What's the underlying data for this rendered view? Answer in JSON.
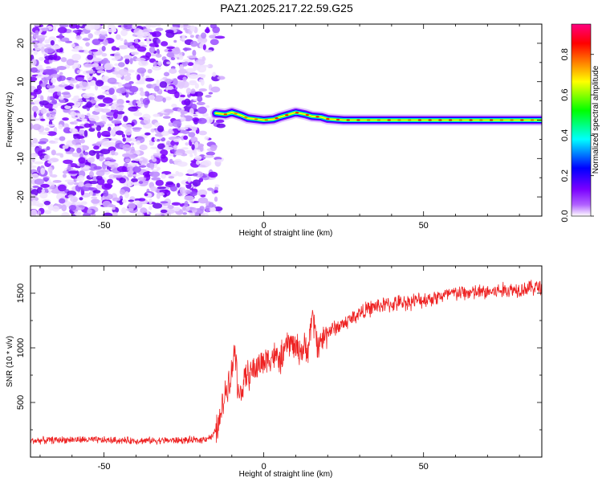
{
  "title": "PAZ1.2025.217.22.59.G25",
  "chart_data": [
    {
      "type": "heatmap",
      "xlabel": "Height of straight line (km)",
      "ylabel": "Frequency (Hz)",
      "xlim": [
        -73,
        87
      ],
      "ylim": [
        -25,
        25
      ],
      "x_ticks": [
        -50,
        0,
        50
      ],
      "y_ticks": [
        -20,
        -10,
        0,
        10,
        20
      ],
      "colorbar": {
        "label": "Normalized spectral amplitude",
        "ticks": [
          "0.0",
          "0.2",
          "0.4",
          "0.6",
          "0.8"
        ],
        "range": [
          0,
          0.95
        ],
        "colors": [
          "#ffffff",
          "#8b00ff",
          "#0000ff",
          "#00ffff",
          "#00ff00",
          "#ffff00",
          "#ff8000",
          "#ff0000",
          "#ff0080"
        ]
      },
      "signal_track": {
        "x": [
          -15,
          -12,
          -10,
          -7,
          -5,
          -2,
          0,
          3,
          5,
          8,
          10,
          13,
          15,
          18,
          20,
          25,
          30,
          40,
          50,
          60,
          70,
          80,
          87
        ],
        "frequency": [
          1.8,
          1.5,
          2.0,
          1.2,
          0.5,
          0.2,
          0.0,
          0.2,
          0.8,
          1.5,
          2.0,
          1.5,
          1.0,
          0.8,
          0.3,
          0.0,
          0.0,
          0.0,
          0.0,
          0.0,
          0.0,
          0.0,
          0.0
        ]
      },
      "noise_region": {
        "x_range": [
          -73,
          -15
        ],
        "freq_range": [
          -25,
          25
        ]
      }
    },
    {
      "type": "line",
      "xlabel": "Height of straight line (km)",
      "ylabel": "SNR (10 * v/v)",
      "xlim": [
        -73,
        87
      ],
      "ylim": [
        0,
        1750
      ],
      "x_ticks": [
        -50,
        0,
        50
      ],
      "y_ticks": [
        500,
        1000,
        1500
      ],
      "color": "#ee2222",
      "series": [
        {
          "x": [
            -73,
            -60,
            -40,
            -20,
            -16,
            -14,
            -12,
            -11,
            -10,
            -9,
            -8,
            -7,
            -5,
            -2,
            0,
            3,
            5,
            8,
            10,
            12,
            14,
            15,
            17,
            20,
            25,
            30,
            35,
            40,
            50,
            60,
            70,
            80,
            87
          ],
          "values": [
            150,
            160,
            150,
            155,
            190,
            300,
            600,
            700,
            780,
            1050,
            560,
            620,
            750,
            830,
            880,
            930,
            880,
            1060,
            1000,
            980,
            1000,
            1300,
            1020,
            1150,
            1220,
            1320,
            1380,
            1400,
            1440,
            1500,
            1510,
            1540,
            1560
          ]
        }
      ]
    }
  ]
}
